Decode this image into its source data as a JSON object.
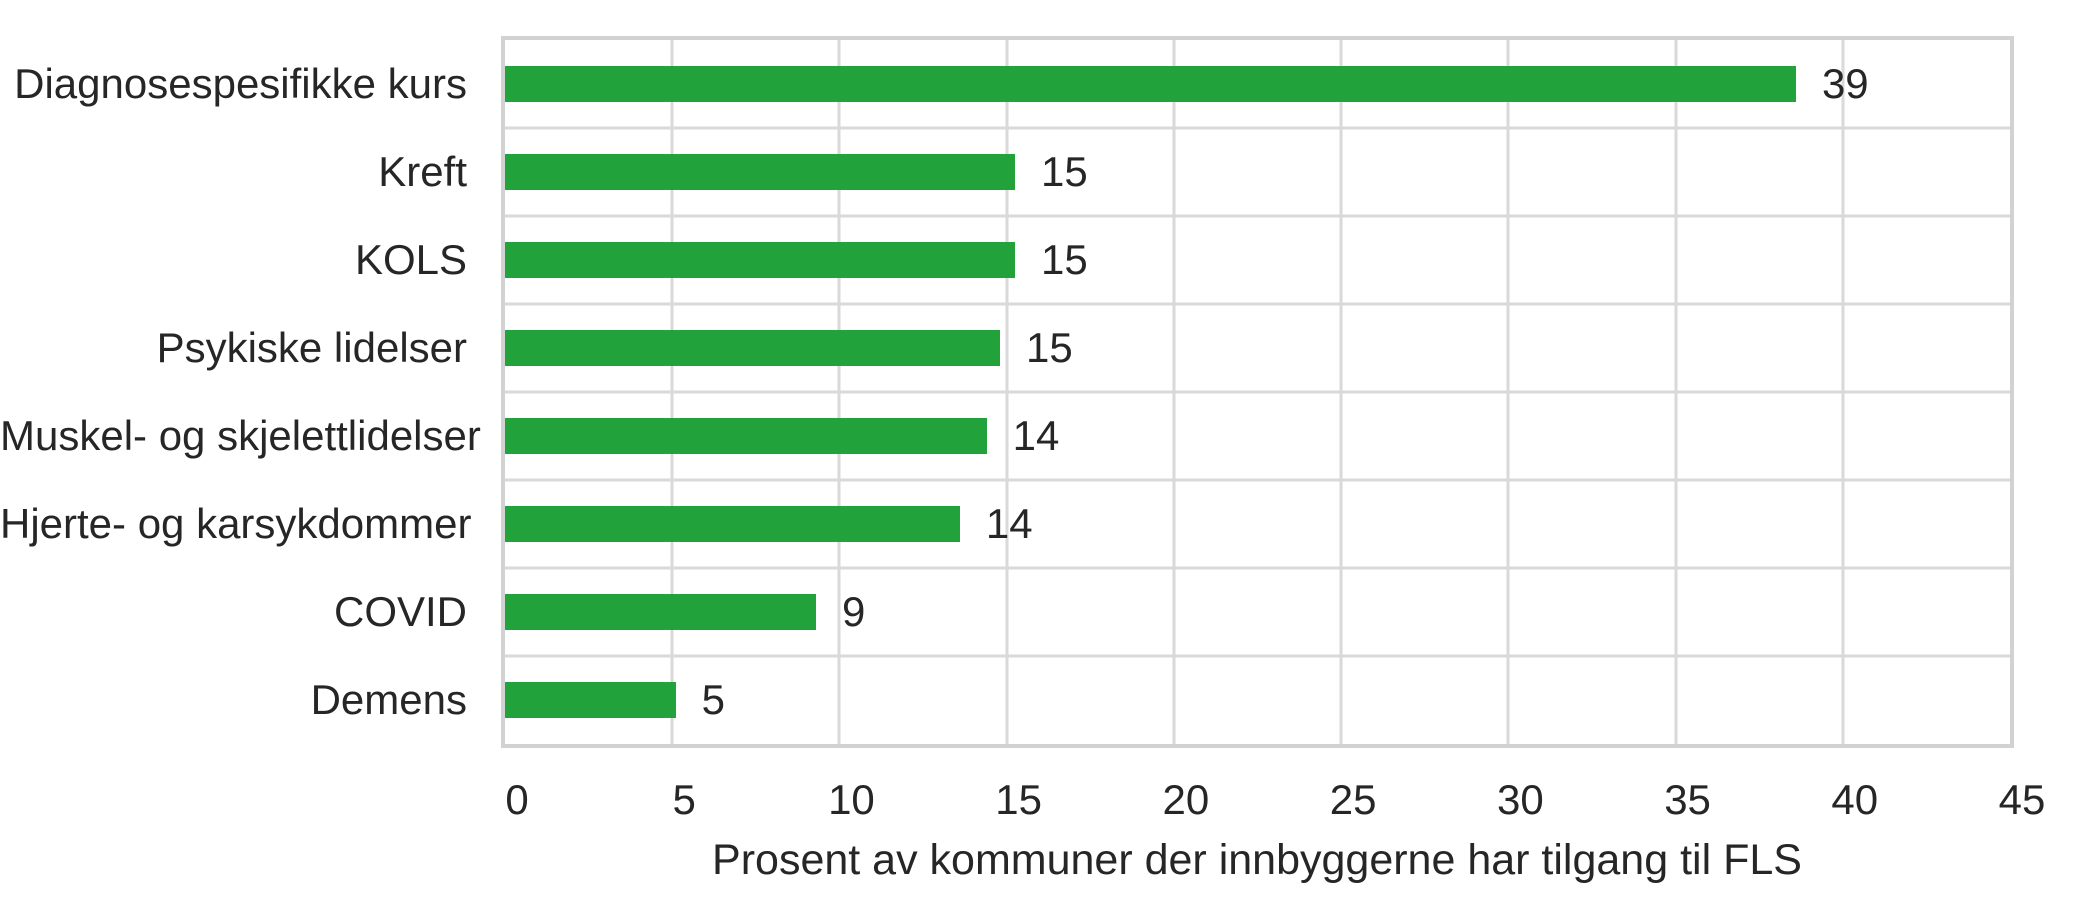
{
  "chart_data": {
    "type": "bar",
    "orientation": "horizontal",
    "title": "",
    "xlabel": "Prosent av kommuner der innbyggerne har tilgang til FLS",
    "ylabel": "",
    "categories": [
      "Diagnosespesifikke kurs",
      "Kreft",
      "KOLS",
      "Psykiske lidelser",
      "Muskel- og skjelettlidelser",
      "Hjerte- og karsykdommer",
      "COVID",
      "Demens"
    ],
    "values": [
      39,
      15,
      15,
      15,
      14,
      14,
      9,
      5
    ],
    "data_labels": [
      "39",
      "15",
      "15",
      "15",
      "14",
      "14",
      "9",
      "5"
    ],
    "underlying_values": [
      38.6,
      15.25,
      15.25,
      14.8,
      14.4,
      13.6,
      9.3,
      5.1
    ],
    "xlim": [
      0,
      45
    ],
    "x_ticks": [
      "0",
      "5",
      "10",
      "15",
      "20",
      "25",
      "30",
      "35",
      "40",
      "45"
    ],
    "x_tick_values": [
      0,
      5,
      10,
      15,
      20,
      25,
      30,
      35,
      40,
      45
    ],
    "grid": "both",
    "legend": "none",
    "bar_color": "#22a23a",
    "gridline_color": "#d9d9d9",
    "text_color": "#262626",
    "background_color": "#ffffff"
  }
}
